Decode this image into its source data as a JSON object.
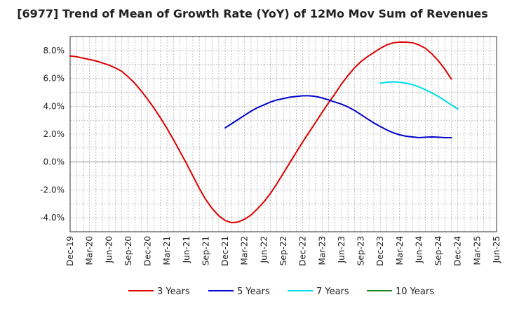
{
  "chart_data": {
    "type": "line",
    "title": "[6977]  Trend of Mean of Growth Rate (YoY) of 12Mo Mov Sum of Revenues",
    "xlabel": "",
    "ylabel": "",
    "ylim": [
      -5.0,
      9.0
    ],
    "yticks": [
      8.0,
      6.0,
      4.0,
      2.0,
      0.0,
      -2.0,
      -4.0
    ],
    "ytick_labels": [
      "8.0%",
      "6.0%",
      "4.0%",
      "2.0%",
      "0.0%",
      "-2.0%",
      "-4.0%"
    ],
    "grid": true,
    "legend_position": "bottom",
    "x_tick_labels": [
      "Dec-19",
      "Mar-20",
      "Jun-20",
      "Sep-20",
      "Dec-20",
      "Mar-21",
      "Jun-21",
      "Sep-21",
      "Dec-21",
      "Mar-22",
      "Jun-22",
      "Sep-22",
      "Dec-22",
      "Mar-23",
      "Jun-23",
      "Sep-23",
      "Dec-23",
      "Mar-24",
      "Jun-24",
      "Sep-24",
      "Dec-24",
      "Mar-25",
      "Jun-25"
    ],
    "series": [
      {
        "name": "3 Years",
        "color": "#dd0000",
        "start_index": 0,
        "values": [
          7.6,
          7.55,
          7.45,
          7.35,
          7.25,
          7.1,
          6.95,
          6.75,
          6.5,
          6.1,
          5.65,
          5.1,
          4.5,
          3.85,
          3.15,
          2.4,
          1.6,
          0.75,
          -0.1,
          -1.0,
          -1.9,
          -2.7,
          -3.35,
          -3.85,
          -4.2,
          -4.35,
          -4.3,
          -4.1,
          -3.8,
          -3.35,
          -2.85,
          -2.25,
          -1.55,
          -0.8,
          -0.05,
          0.7,
          1.45,
          2.15,
          2.85,
          3.55,
          4.25,
          4.9,
          5.6,
          6.2,
          6.75,
          7.2,
          7.55,
          7.85,
          8.15,
          8.4,
          8.55,
          8.6,
          8.6,
          8.55,
          8.4,
          8.15,
          7.75,
          7.25,
          6.65,
          5.95
        ]
      },
      {
        "name": "5 Years",
        "color": "#0000cc",
        "start_index": 24,
        "values": [
          2.45,
          2.75,
          3.05,
          3.35,
          3.65,
          3.9,
          4.1,
          4.3,
          4.45,
          4.55,
          4.65,
          4.7,
          4.75,
          4.75,
          4.7,
          4.6,
          4.45,
          4.3,
          4.15,
          3.95,
          3.7,
          3.4,
          3.1,
          2.8,
          2.55,
          2.3,
          2.1,
          1.95,
          1.85,
          1.8,
          1.75,
          1.78,
          1.8,
          1.78,
          1.75,
          1.75
        ]
      },
      {
        "name": "7 Years",
        "color": "#00ddee",
        "start_index": 48,
        "values": [
          5.65,
          5.72,
          5.75,
          5.72,
          5.65,
          5.55,
          5.38,
          5.18,
          4.95,
          4.7,
          4.4,
          4.1,
          3.8
        ]
      },
      {
        "name": "10 Years",
        "color": "#228822",
        "start_index": 0,
        "values": []
      }
    ]
  }
}
